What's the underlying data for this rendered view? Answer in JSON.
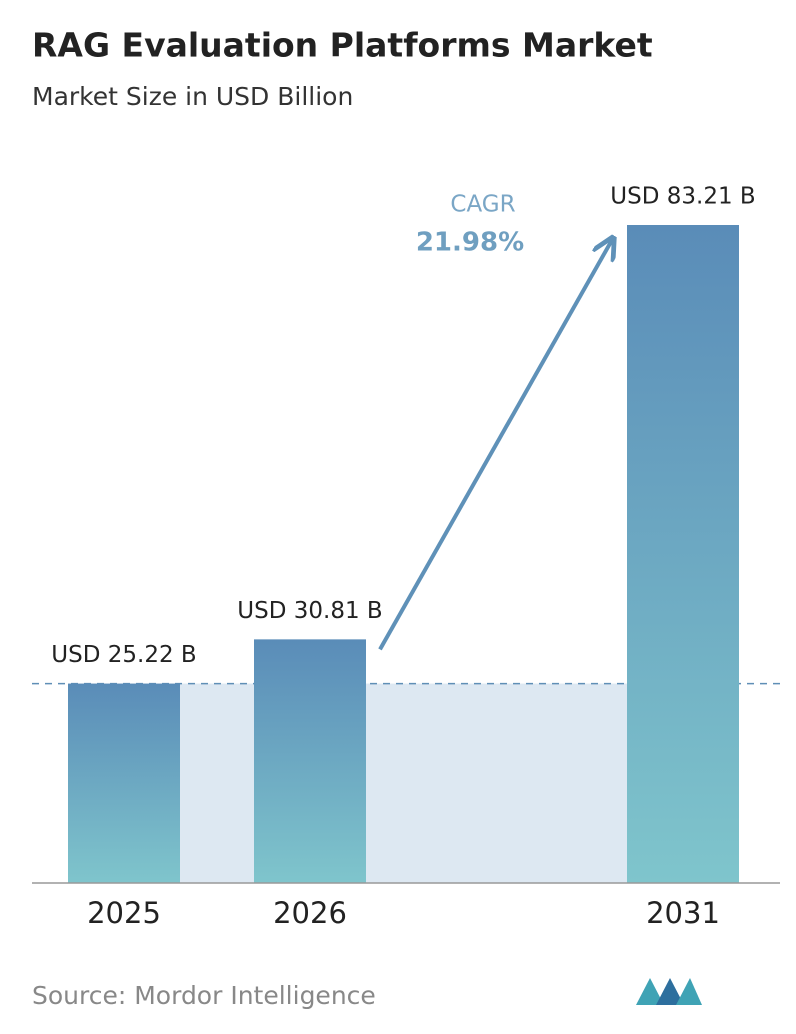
{
  "chart_data": {
    "type": "bar",
    "title": "RAG Evaluation Platforms Market",
    "subtitle": "Market Size in USD Billion",
    "categories": [
      "2025",
      "2026",
      "2031"
    ],
    "values": [
      25.22,
      30.81,
      83.21
    ],
    "value_labels": [
      "USD 25.22 B",
      "USD 30.81 B",
      "USD 83.21 B"
    ],
    "annotation_label": "CAGR",
    "annotation_value": "21.98%",
    "source": "Source: Mordor Intelligence"
  }
}
